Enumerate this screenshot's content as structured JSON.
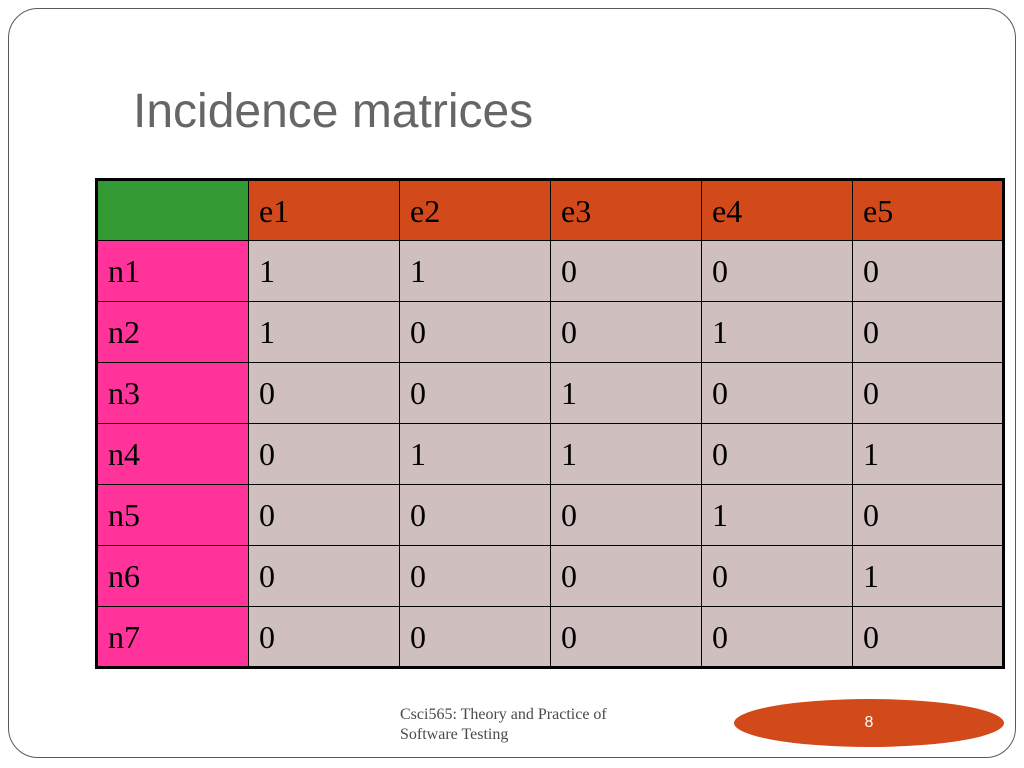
{
  "slide": {
    "title": "Incidence matrices",
    "footer": {
      "line1": "Csci565: Theory and Practice of",
      "line2": "Software Testing"
    },
    "page_number": "8"
  },
  "matrix": {
    "columns": [
      "e1",
      "e2",
      "e3",
      "e4",
      "e5"
    ],
    "rows": [
      {
        "label": "n1",
        "values": [
          "1",
          "1",
          "0",
          "0",
          "0"
        ]
      },
      {
        "label": "n2",
        "values": [
          "1",
          "0",
          "0",
          "1",
          "0"
        ]
      },
      {
        "label": "n3",
        "values": [
          "0",
          "0",
          "1",
          "0",
          "0"
        ]
      },
      {
        "label": "n4",
        "values": [
          "0",
          "1",
          "1",
          "0",
          "1"
        ]
      },
      {
        "label": "n5",
        "values": [
          "0",
          "0",
          "0",
          "1",
          "0"
        ]
      },
      {
        "label": "n6",
        "values": [
          "0",
          "0",
          "0",
          "0",
          "1"
        ]
      },
      {
        "label": "n7",
        "values": [
          "0",
          "0",
          "0",
          "0",
          "0"
        ]
      }
    ]
  },
  "colors": {
    "corner": "#339933",
    "column_header": "#d24a1a",
    "row_header": "#ff3399",
    "cell": "#d0bfbf",
    "title_text": "#666666",
    "page_oval": "#d24a1a"
  }
}
